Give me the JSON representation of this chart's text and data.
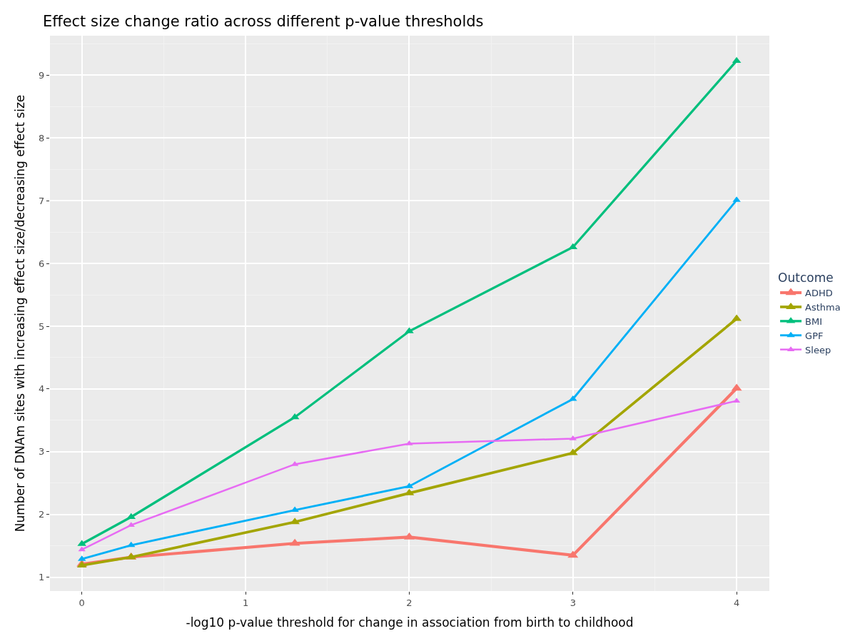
{
  "chart_data": {
    "type": "line",
    "title": "Effect size change ratio across different p-value thresholds",
    "xlabel": "-log10 p-value threshold for change in association from birth to childhood",
    "ylabel": "Number of DNAm sites with increasing effect size/decreasing effect size",
    "legend_title": "Outcome",
    "legend": "right",
    "marker": "triangle",
    "line_style": "solid",
    "grid": true,
    "x": [
      0,
      0.301,
      1.301,
      2,
      3,
      4
    ],
    "xlim": [
      -0.195,
      4.2
    ],
    "xticks": [
      0,
      1,
      2,
      3,
      4
    ],
    "ylim": [
      0.78,
      9.63
    ],
    "yticks": [
      1,
      2,
      3,
      4,
      5,
      6,
      7,
      8,
      9
    ],
    "series": [
      {
        "name": "ADHD",
        "color": "#f8766d",
        "values": [
          1.21,
          1.32,
          1.54,
          1.64,
          1.35,
          4.01
        ]
      },
      {
        "name": "Asthma",
        "color": "#a3a500",
        "values": [
          1.19,
          1.32,
          1.88,
          2.34,
          2.98,
          5.12
        ]
      },
      {
        "name": "BMI",
        "color": "#00bf7d",
        "values": [
          1.53,
          1.96,
          3.55,
          4.92,
          6.26,
          9.23
        ]
      },
      {
        "name": "GPF",
        "color": "#00b0f6",
        "values": [
          1.29,
          1.51,
          2.07,
          2.45,
          3.84,
          7.01
        ]
      },
      {
        "name": "Sleep",
        "color": "#e76bf3",
        "values": [
          1.44,
          1.83,
          2.8,
          3.13,
          3.21,
          3.81
        ]
      }
    ]
  }
}
